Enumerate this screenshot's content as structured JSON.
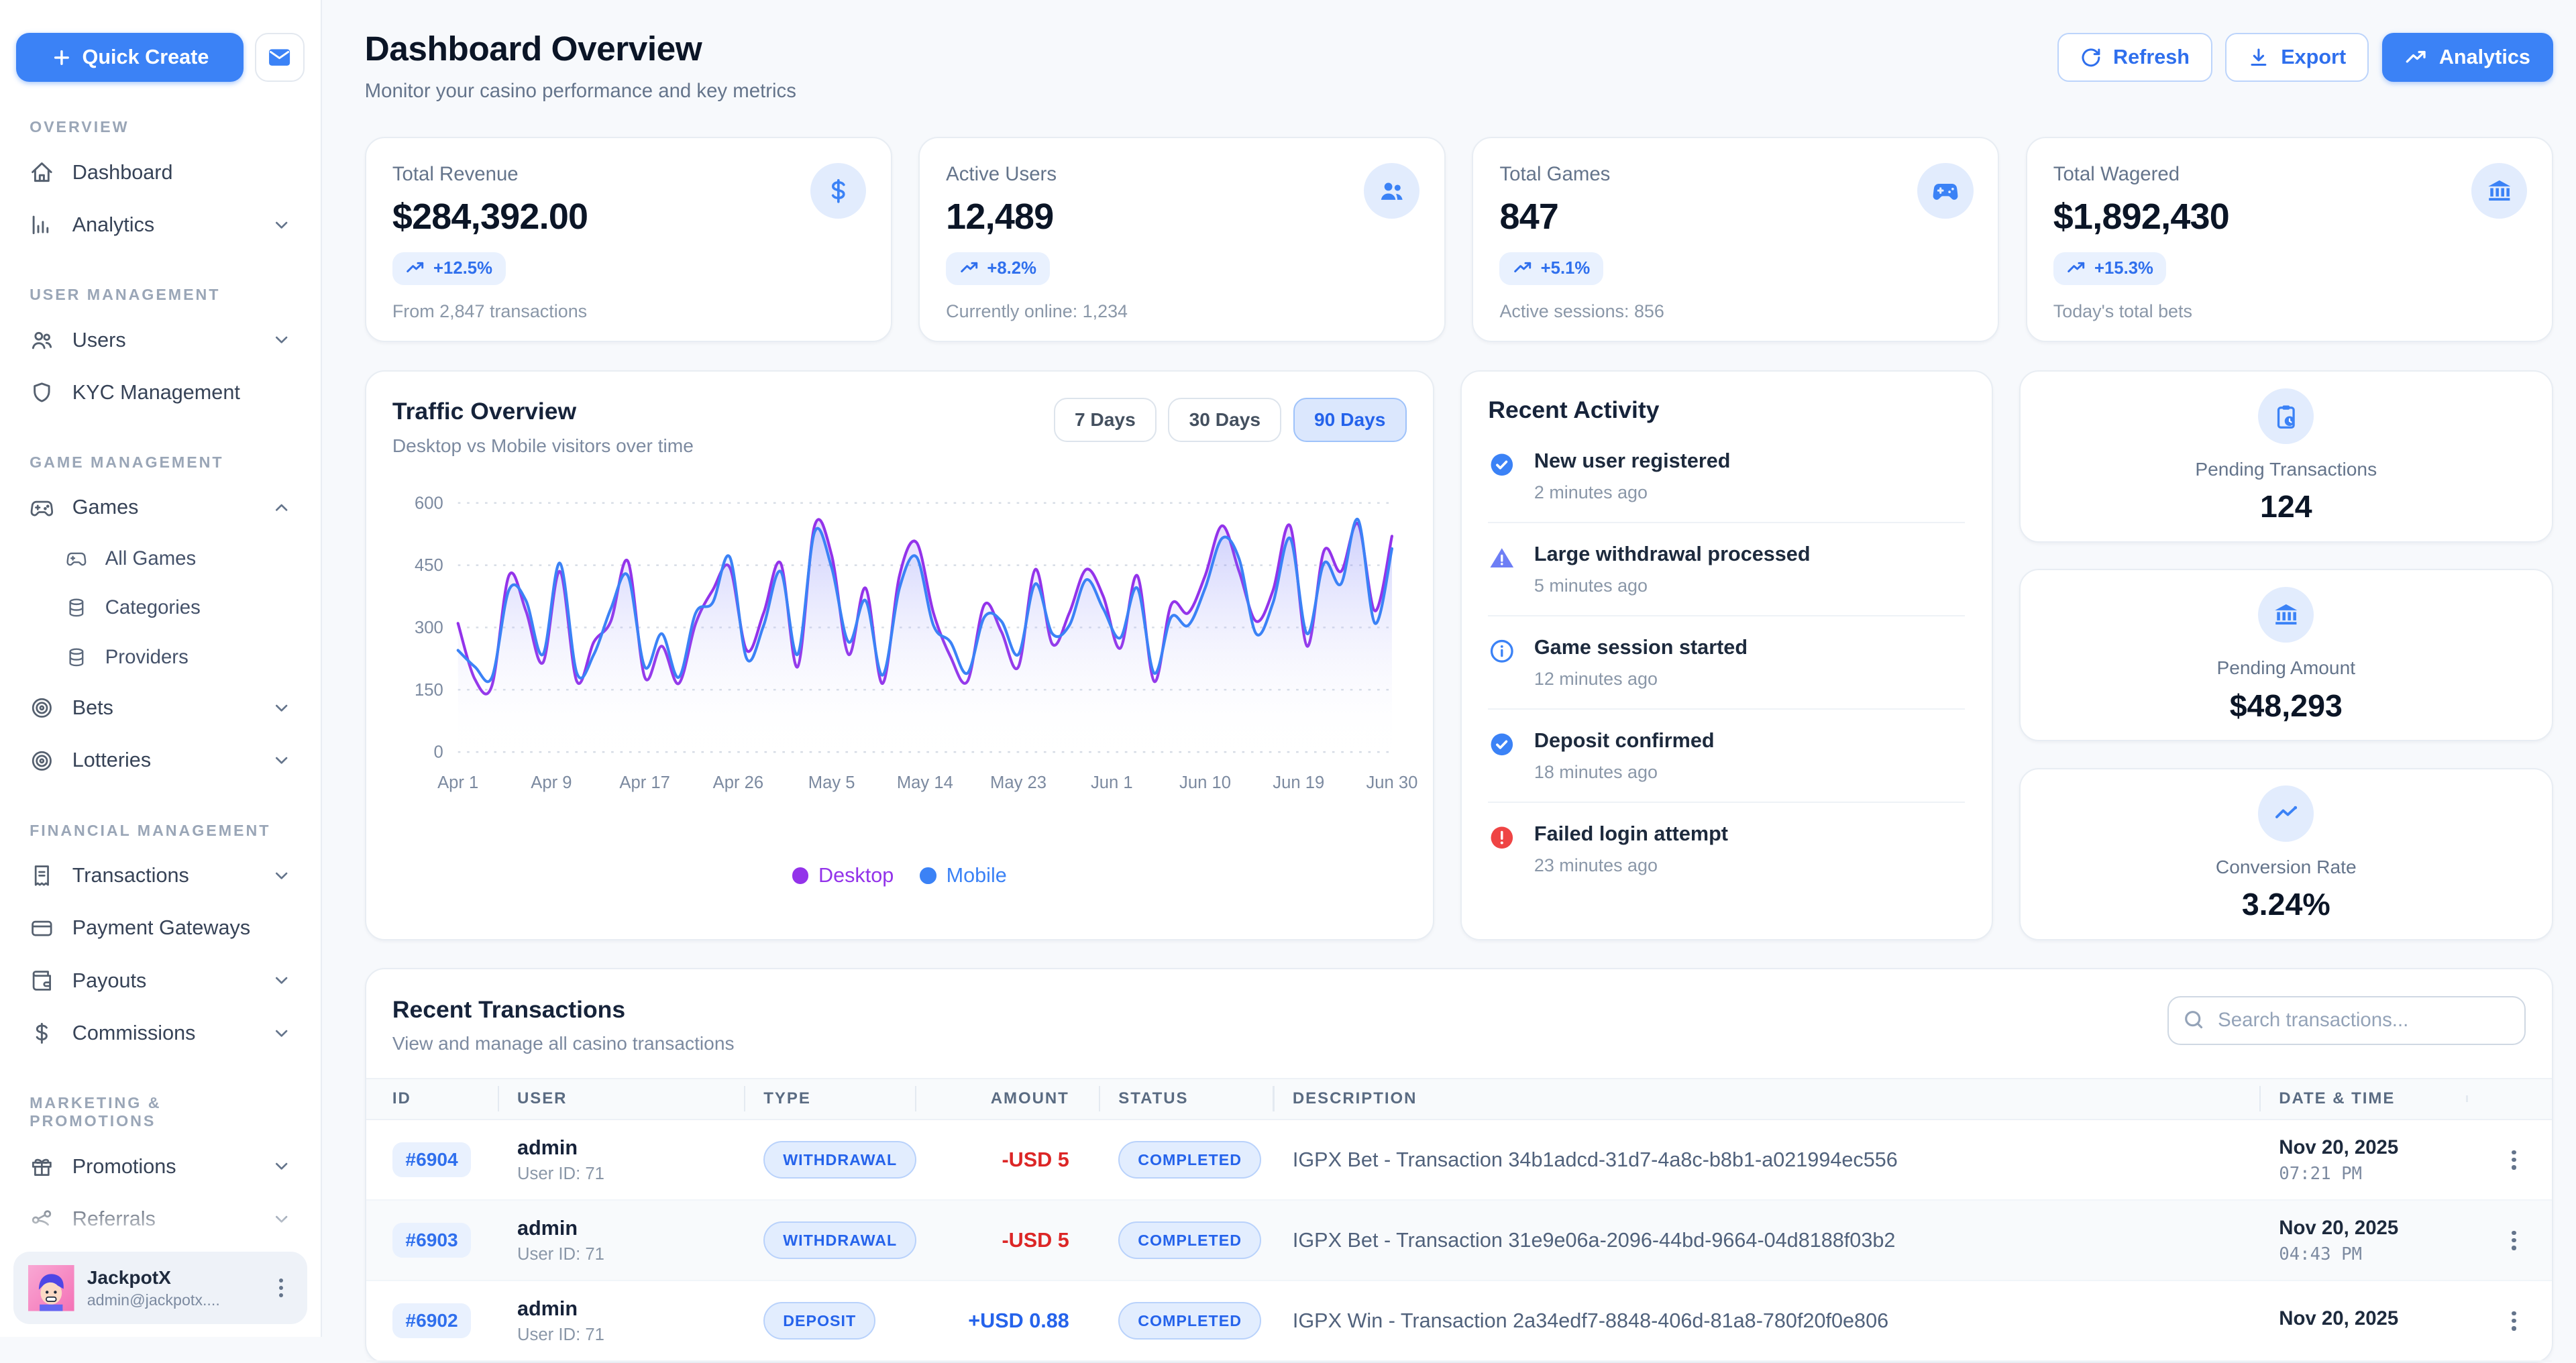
{
  "app": {
    "accent": "#3b82f6",
    "background": "#f7f9fc"
  },
  "sidebar": {
    "quick_create_label": "Quick Create",
    "sections": [
      {
        "label": "OVERVIEW",
        "items": [
          {
            "label": "Dashboard"
          },
          {
            "label": "Analytics"
          }
        ]
      },
      {
        "label": "USER MANAGEMENT",
        "items": [
          {
            "label": "Users"
          },
          {
            "label": "KYC Management"
          }
        ]
      },
      {
        "label": "GAME MANAGEMENT",
        "items": [
          {
            "label": "Games"
          },
          {
            "label": "All Games"
          },
          {
            "label": "Categories"
          },
          {
            "label": "Providers"
          },
          {
            "label": "Bets"
          },
          {
            "label": "Lotteries"
          }
        ]
      },
      {
        "label": "FINANCIAL MANAGEMENT",
        "items": [
          {
            "label": "Transactions"
          },
          {
            "label": "Payment Gateways"
          },
          {
            "label": "Payouts"
          },
          {
            "label": "Commissions"
          }
        ]
      },
      {
        "label": "MARKETING & PROMOTIONS",
        "items": [
          {
            "label": "Promotions"
          },
          {
            "label": "Referrals"
          }
        ]
      }
    ],
    "user": {
      "name": "JackpotX",
      "email": "admin@jackpotx...."
    }
  },
  "header": {
    "title": "Dashboard Overview",
    "subtitle": "Monitor your casino performance and key metrics",
    "refresh_label": "Refresh",
    "export_label": "Export",
    "analytics_label": "Analytics"
  },
  "stats": [
    {
      "label": "Total Revenue",
      "value": "$284,392.00",
      "badge": "+12.5%",
      "sub": "From 2,847 transactions",
      "icon": "dollar-icon"
    },
    {
      "label": "Active Users",
      "value": "12,489",
      "badge": "+8.2%",
      "sub": "Currently online: 1,234",
      "icon": "users-icon"
    },
    {
      "label": "Total Games",
      "value": "847",
      "badge": "+5.1%",
      "sub": "Active sessions: 856",
      "icon": "gamepad-icon"
    },
    {
      "label": "Total Wagered",
      "value": "$1,892,430",
      "badge": "+15.3%",
      "sub": "Today's total bets",
      "icon": "bank-icon"
    }
  ],
  "traffic": {
    "title": "Traffic Overview",
    "subtitle": "Desktop vs Mobile visitors over time",
    "ranges": [
      {
        "label": "7 Days"
      },
      {
        "label": "30 Days"
      },
      {
        "label": "90 Days"
      }
    ],
    "active_range": "90 Days",
    "chart_data": {
      "type": "area",
      "title": "Traffic Overview",
      "x_tick_labels": [
        "Apr 1",
        "Apr 9",
        "Apr 17",
        "Apr 26",
        "May 5",
        "May 14",
        "May 23",
        "Jun 1",
        "Jun 10",
        "Jun 19",
        "Jun 30"
      ],
      "ylim": [
        0,
        600
      ],
      "yticks": [
        0,
        150,
        300,
        450,
        600
      ],
      "grid": "dotted-horizontal",
      "legend_position": "bottom-center",
      "series": [
        {
          "name": "Desktop",
          "color": "#9333ea",
          "fill": "rgba(139,92,246,0.22)",
          "values": [
            310,
            175,
            160,
            425,
            340,
            215,
            435,
            170,
            265,
            315,
            460,
            180,
            255,
            165,
            310,
            390,
            445,
            245,
            335,
            455,
            205,
            545,
            475,
            235,
            395,
            165,
            425,
            505,
            335,
            230,
            170,
            355,
            290,
            205,
            440,
            260,
            335,
            440,
            375,
            250,
            425,
            170,
            355,
            335,
            425,
            545,
            435,
            315,
            390,
            545,
            255,
            485,
            435,
            550,
            340,
            520
          ]
        },
        {
          "name": "Mobile",
          "color": "#3b82f6",
          "fill": "rgba(59,130,246,0.15)",
          "values": [
            245,
            205,
            180,
            390,
            365,
            235,
            455,
            190,
            235,
            345,
            425,
            205,
            285,
            180,
            335,
            360,
            470,
            225,
            305,
            435,
            235,
            530,
            445,
            265,
            365,
            185,
            395,
            470,
            305,
            265,
            190,
            325,
            315,
            235,
            405,
            285,
            305,
            415,
            345,
            275,
            395,
            190,
            325,
            305,
            395,
            515,
            465,
            285,
            360,
            515,
            285,
            455,
            405,
            560,
            310,
            490
          ]
        }
      ]
    }
  },
  "activity": {
    "title": "Recent Activity",
    "items": [
      {
        "title": "New user registered",
        "time": "2 minutes ago",
        "icon": "check-circle-icon",
        "color": "#3b82f6"
      },
      {
        "title": "Large withdrawal processed",
        "time": "5 minutes ago",
        "icon": "warning-triangle-icon",
        "color": "#6d7ef5"
      },
      {
        "title": "Game session started",
        "time": "12 minutes ago",
        "icon": "info-circle-icon",
        "color": "#3b82f6"
      },
      {
        "title": "Deposit confirmed",
        "time": "18 minutes ago",
        "icon": "check-circle-icon",
        "color": "#3b82f6"
      },
      {
        "title": "Failed login attempt",
        "time": "23 minutes ago",
        "icon": "alert-circle-icon",
        "color": "#ef4444"
      }
    ]
  },
  "side_stats": [
    {
      "label": "Pending Transactions",
      "value": "124",
      "icon": "clipboard-clock-icon"
    },
    {
      "label": "Pending Amount",
      "value": "$48,293",
      "icon": "bank-icon"
    },
    {
      "label": "Conversion Rate",
      "value": "3.24%",
      "icon": "trend-icon"
    }
  ],
  "transactions": {
    "title": "Recent Transactions",
    "subtitle": "View and manage all casino transactions",
    "search_placeholder": "Search transactions...",
    "columns": [
      "ID",
      "USER",
      "TYPE",
      "AMOUNT",
      "STATUS",
      "DESCRIPTION",
      "DATE & TIME"
    ],
    "rows": [
      {
        "id": "#6904",
        "user": "admin",
        "user_id": "User ID: 71",
        "type": "WITHDRAWAL",
        "amount": "-USD 5",
        "amount_color": "#dc2626",
        "status": "COMPLETED",
        "description": "IGPX Bet - Transaction 34b1adcd-31d7-4a8c-b8b1-a021994ec556",
        "date": "Nov 20, 2025",
        "time": "07:21 PM"
      },
      {
        "id": "#6903",
        "user": "admin",
        "user_id": "User ID: 71",
        "type": "WITHDRAWAL",
        "amount": "-USD 5",
        "amount_color": "#dc2626",
        "status": "COMPLETED",
        "description": "IGPX Bet - Transaction 31e9e06a-2096-44bd-9664-04d8188f03b2",
        "date": "Nov 20, 2025",
        "time": "04:43 PM"
      },
      {
        "id": "#6902",
        "user": "admin",
        "user_id": "User ID: 71",
        "type": "DEPOSIT",
        "amount": "+USD 0.88",
        "amount_color": "#2563eb",
        "status": "COMPLETED",
        "description": "IGPX Win - Transaction 2a34edf7-8848-406d-81a8-780f20f0e806",
        "date": "Nov 20, 2025",
        "time": ""
      }
    ]
  }
}
